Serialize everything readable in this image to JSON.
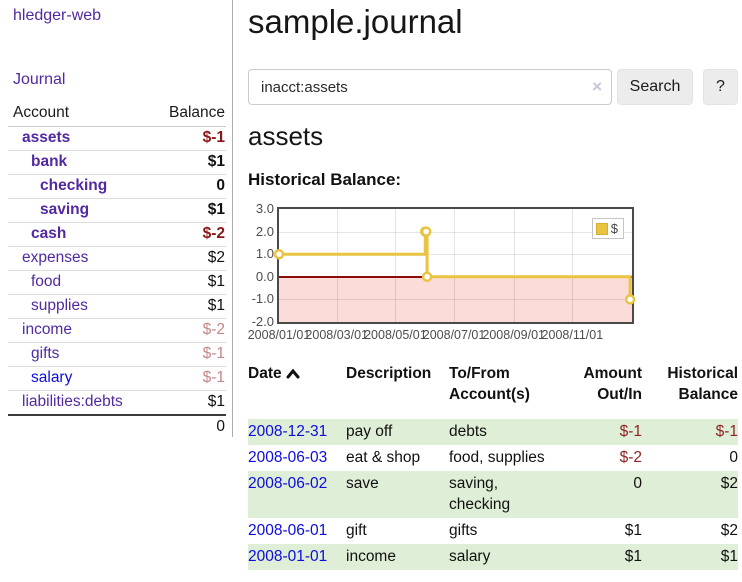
{
  "colors": {
    "link_purple": "#5229a0",
    "link_blue": "#0c0cdd",
    "negative_strong": "#8b1414",
    "negative_soft": "#c4868a",
    "negative_table": "#8e2424",
    "row_green": "#dfeed6",
    "chart_line": "#e9c342",
    "chart_negative_fill": "#fcdcd9",
    "chart_zero_line": "#8b0a0a"
  },
  "sidebar": {
    "app_title": "hledger-web",
    "nav_journal": "Journal",
    "accounts": {
      "col_account": "Account",
      "col_balance": "Balance",
      "rows": [
        {
          "name": "assets",
          "balance": "$-1",
          "depth": 1,
          "bold": true,
          "neg": "strong",
          "link": "purple"
        },
        {
          "name": "bank",
          "balance": "$1",
          "depth": 2,
          "bold": true,
          "neg": "none",
          "link": "purple"
        },
        {
          "name": "checking",
          "balance": "0",
          "depth": 3,
          "bold": true,
          "neg": "none",
          "link": "purple"
        },
        {
          "name": "saving",
          "balance": "$1",
          "depth": 3,
          "bold": true,
          "neg": "none",
          "link": "purple"
        },
        {
          "name": "cash",
          "balance": "$-2",
          "depth": 2,
          "bold": true,
          "neg": "strong",
          "link": "purple"
        },
        {
          "name": "expenses",
          "balance": "$2",
          "depth": 1,
          "bold": false,
          "neg": "none",
          "link": "purple"
        },
        {
          "name": "food",
          "balance": "$1",
          "depth": 2,
          "bold": false,
          "neg": "none",
          "link": "purple"
        },
        {
          "name": "supplies",
          "balance": "$1",
          "depth": 2,
          "bold": false,
          "neg": "none",
          "link": "purple"
        },
        {
          "name": "income",
          "balance": "$-2",
          "depth": 1,
          "bold": false,
          "neg": "soft",
          "link": "purple"
        },
        {
          "name": "gifts",
          "balance": "$-1",
          "depth": 2,
          "bold": false,
          "neg": "soft",
          "link": "purple"
        },
        {
          "name": "salary",
          "balance": "$-1",
          "depth": 2,
          "bold": false,
          "neg": "soft",
          "link": "blue"
        },
        {
          "name": "liabilities:debts",
          "balance": "$1",
          "depth": 1,
          "bold": false,
          "neg": "none",
          "link": "purple"
        }
      ],
      "total": "0"
    }
  },
  "main": {
    "page_title": "sample.journal",
    "search": {
      "value": "inacct:assets",
      "clear_icon": "×",
      "search_button": "Search",
      "help_button": "?"
    },
    "account_heading": "assets",
    "chart_title": "Historical Balance:"
  },
  "chart_data": {
    "type": "line",
    "step": true,
    "title": "Historical Balance:",
    "series": [
      {
        "name": "$",
        "points": [
          [
            "2008-01-01",
            1
          ],
          [
            "2008-06-01",
            2
          ],
          [
            "2008-06-02",
            2
          ],
          [
            "2008-06-03",
            0
          ],
          [
            "2008-12-31",
            -1
          ]
        ]
      }
    ],
    "x_domain": [
      "2008-01-01",
      "2009-01-02"
    ],
    "x_ticks": [
      {
        "date": "2008-01-01",
        "label": "2008/01/01"
      },
      {
        "date": "2008-03-01",
        "label": "2008/03/01"
      },
      {
        "date": "2008-05-01",
        "label": "2008/05/01"
      },
      {
        "date": "2008-07-01",
        "label": "2008/07/01"
      },
      {
        "date": "2008-09-01",
        "label": "2008/09/01"
      },
      {
        "date": "2008-11-01",
        "label": "2008/11/01"
      }
    ],
    "y_ticks": [
      "3.0",
      "2.0",
      "1.0",
      "0.0",
      "-1.0",
      "-2.0"
    ],
    "ylim": [
      -2,
      3
    ],
    "legend": {
      "label": "$",
      "position": "top-right"
    },
    "grid": true,
    "negative_region_shaded": true
  },
  "transactions": {
    "headers": {
      "date": "Date",
      "description": "Description",
      "account_line1": "To/From",
      "account_line2": "Account(s)",
      "amount_line1": "Amount",
      "amount_line2": "Out/In",
      "balance_line1": "Historical",
      "balance_line2": "Balance"
    },
    "sort": "date-ascending",
    "rows": [
      {
        "date": "2008-12-31",
        "description": "pay off",
        "accounts": [
          "debts"
        ],
        "amount": "$-1",
        "amount_neg": true,
        "balance": "$-1",
        "balance_neg": true,
        "highlight": true
      },
      {
        "date": "2008-06-03",
        "description": "eat & shop",
        "accounts": [
          "food, supplies"
        ],
        "amount": "$-2",
        "amount_neg": true,
        "balance": "0",
        "balance_neg": false,
        "highlight": false
      },
      {
        "date": "2008-06-02",
        "description": "save",
        "accounts": [
          "saving,",
          "checking"
        ],
        "amount": "0",
        "amount_neg": false,
        "balance": "$2",
        "balance_neg": false,
        "highlight": true
      },
      {
        "date": "2008-06-01",
        "description": "gift",
        "accounts": [
          "gifts"
        ],
        "amount": "$1",
        "amount_neg": false,
        "balance": "$2",
        "balance_neg": false,
        "highlight": false
      },
      {
        "date": "2008-01-01",
        "description": "income",
        "accounts": [
          "salary"
        ],
        "amount": "$1",
        "amount_neg": false,
        "balance": "$1",
        "balance_neg": false,
        "highlight": true
      }
    ]
  }
}
